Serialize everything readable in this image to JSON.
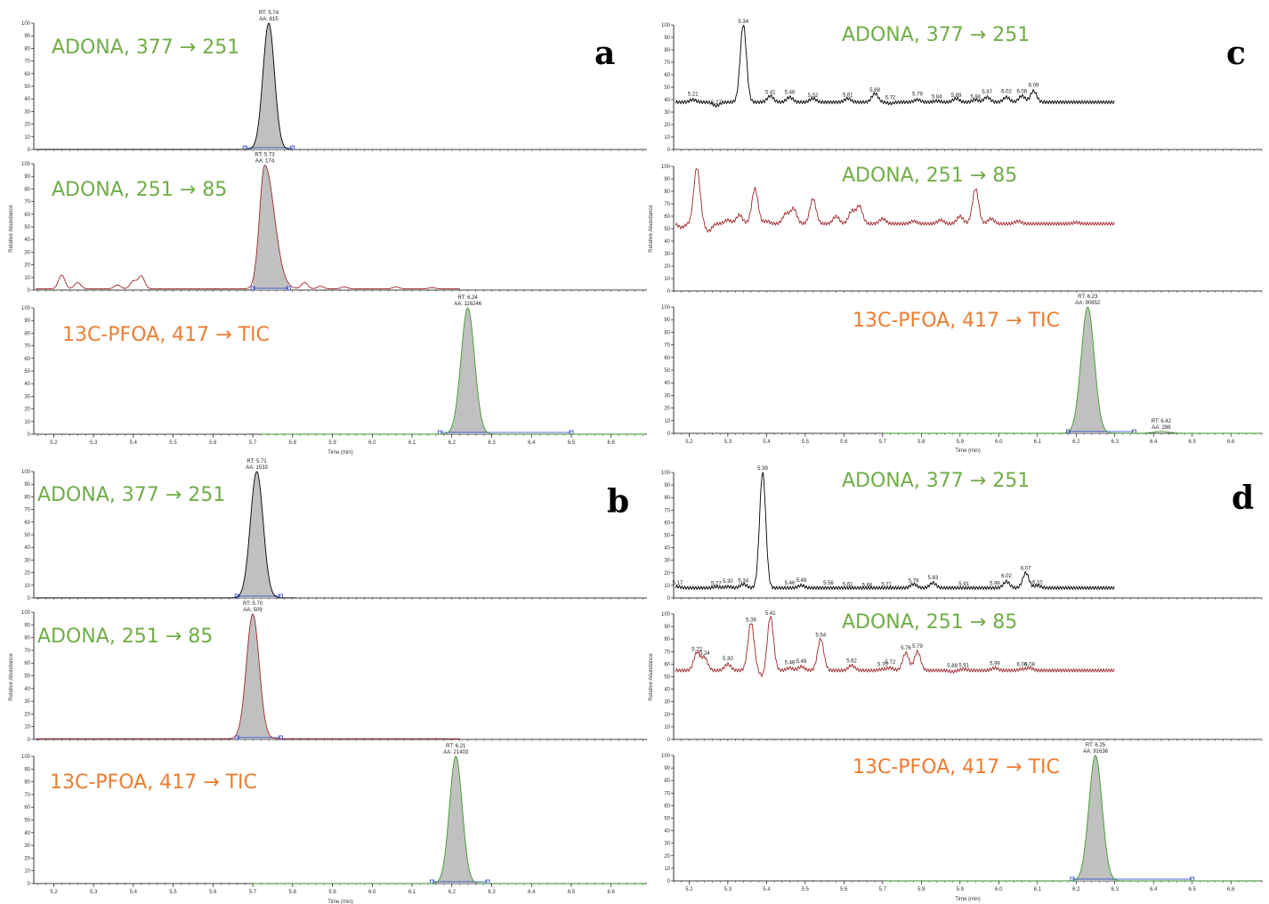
{
  "colors": {
    "green_text": "#70ad47",
    "orange_text": "#ed7d31",
    "black_trace": "#000000",
    "red_trace": "#a0282d",
    "green_trace": "#3c9a2c",
    "peak_fill": "#c0c0c0",
    "baseline_marker": "#1f3fcf"
  },
  "common": {
    "y_axis_label": "Relative Abundance",
    "x_axis_label": "Time (min)"
  },
  "chart_data": [
    {
      "type": "line",
      "panel": "a",
      "x_ticks": [
        5.2,
        5.3,
        5.4,
        5.5,
        5.6,
        5.7,
        5.8,
        5.9,
        6.0,
        6.1,
        6.2,
        6.3,
        6.4,
        6.5,
        6.6
      ],
      "xlim": [
        5.15,
        6.69
      ],
      "subplots": [
        {
          "annotation": "ADONA, 377 → 251",
          "annotation_color": "green",
          "color": "black",
          "ylim": [
            0,
            100
          ],
          "y_ticks": [
            0,
            10,
            20,
            30,
            40,
            50,
            60,
            70,
            80,
            90,
            100
          ],
          "trace_end": 5.8,
          "baseline": 0,
          "peaks": [
            {
              "rt": 5.74,
              "sigma": 0.0145,
              "height": 100,
              "fill": true,
              "fill_from": 5.68,
              "fill_to": 5.8,
              "label": [
                "RT: 5.74",
                "AA: 815"
              ]
            }
          ],
          "noise": []
        },
        {
          "annotation": "ADONA, 251 → 85",
          "annotation_color": "green",
          "color": "red",
          "ylim": [
            0,
            100
          ],
          "y_ticks": [
            0,
            10,
            20,
            30,
            40,
            50,
            60,
            70,
            80,
            90,
            100
          ],
          "trace_end": 6.22,
          "baseline": 1,
          "peaks": [
            {
              "rt": 5.73,
              "sigma": 0.013,
              "height": 98,
              "tailing": 0.024,
              "fill": true,
              "fill_from": 5.7,
              "fill_to": 5.79,
              "label": [
                "RT: 5.73",
                "AA: 174"
              ]
            }
          ],
          "noise": [
            [
              5.22,
              11
            ],
            [
              5.26,
              5
            ],
            [
              5.36,
              3
            ],
            [
              5.4,
              6
            ],
            [
              5.42,
              10
            ],
            [
              5.83,
              5
            ],
            [
              5.87,
              2
            ],
            [
              5.93,
              1.5
            ],
            [
              6.06,
              1.5
            ],
            [
              6.15,
              1
            ]
          ]
        },
        {
          "annotation": "13C-PFOA, 417 → TIC",
          "annotation_color": "orange",
          "color": "green",
          "ylim": [
            0,
            100
          ],
          "y_ticks": [
            0,
            10,
            20,
            30,
            40,
            50,
            60,
            70,
            80,
            90,
            100
          ],
          "trace_start": 5.72,
          "baseline": 0,
          "peaks": [
            {
              "rt": 6.24,
              "sigma": 0.017,
              "height": 100,
              "fill": true,
              "fill_from": 6.17,
              "fill_to": 6.5,
              "label": [
                "RT: 6.24",
                "AA: 116246"
              ]
            }
          ],
          "noise": []
        }
      ]
    },
    {
      "type": "line",
      "panel": "b",
      "x_ticks": [
        5.2,
        5.3,
        5.4,
        5.5,
        5.6,
        5.7,
        5.8,
        5.9,
        6.0,
        6.1,
        6.2,
        6.3,
        6.4,
        6.5,
        6.6
      ],
      "xlim": [
        5.15,
        6.69
      ],
      "subplots": [
        {
          "annotation": "ADONA, 377 → 251",
          "annotation_color": "green",
          "color": "black",
          "ylim": [
            0,
            100
          ],
          "y_ticks": [
            0,
            10,
            20,
            30,
            40,
            50,
            60,
            70,
            80,
            90,
            100
          ],
          "trace_end": 5.81,
          "baseline": 0,
          "peaks": [
            {
              "rt": 5.71,
              "sigma": 0.016,
              "height": 100,
              "fill": true,
              "fill_from": 5.66,
              "fill_to": 5.77,
              "label": [
                "RT: 5.71",
                "AA: 1533"
              ]
            }
          ],
          "noise": []
        },
        {
          "annotation": "ADONA, 251 → 85",
          "annotation_color": "green",
          "color": "red",
          "ylim": [
            0,
            100
          ],
          "y_ticks": [
            0,
            10,
            20,
            30,
            40,
            50,
            60,
            70,
            80,
            90,
            100
          ],
          "trace_end": 6.22,
          "baseline": 0.5,
          "peaks": [
            {
              "rt": 5.7,
              "sigma": 0.016,
              "height": 98,
              "fill": true,
              "fill_from": 5.66,
              "fill_to": 5.77,
              "label": [
                "RT: 5.70",
                "AA: 509"
              ]
            }
          ],
          "noise": []
        },
        {
          "annotation": "13C-PFOA, 417 → TIC",
          "annotation_color": "orange",
          "color": "green",
          "ylim": [
            0,
            100
          ],
          "y_ticks": [
            0,
            10,
            20,
            30,
            40,
            50,
            60,
            70,
            80,
            90,
            100
          ],
          "trace_start": 5.7,
          "baseline": 0,
          "peaks": [
            {
              "rt": 6.21,
              "sigma": 0.016,
              "height": 100,
              "fill": true,
              "fill_from": 6.15,
              "fill_to": 6.29,
              "label": [
                "RT: 6.21",
                "AA: 21403"
              ]
            }
          ],
          "noise": []
        }
      ]
    },
    {
      "type": "line",
      "panel": "c",
      "x_ticks": [
        5.2,
        5.3,
        5.4,
        5.5,
        5.6,
        5.7,
        5.8,
        5.9,
        6.0,
        6.1,
        6.2,
        6.3,
        6.4,
        6.5,
        6.6
      ],
      "xlim": [
        5.16,
        6.68
      ],
      "subplots": [
        {
          "annotation": "ADONA, 377 → 251",
          "annotation_color": "green",
          "color": "black",
          "ylim": [
            0,
            100
          ],
          "y_ticks": [
            0,
            10,
            20,
            30,
            40,
            50,
            60,
            70,
            80,
            90,
            100
          ],
          "trace_end": 6.3,
          "baseline": 38,
          "peaks": [
            {
              "rt": 5.34,
              "sigma": 0.008,
              "height": 62,
              "fill": false,
              "label": [
                "5.34"
              ]
            }
          ],
          "noise": [
            [
              5.21,
              2,
              "5.21"
            ],
            [
              5.27,
              -3,
              "5.27"
            ],
            [
              5.41,
              5,
              "5.41"
            ],
            [
              5.46,
              4,
              "5.46"
            ],
            [
              5.52,
              3,
              "5.52"
            ],
            [
              5.61,
              3,
              "5.61"
            ],
            [
              5.68,
              7,
              "5.68"
            ],
            [
              5.72,
              -1,
              "5.72"
            ],
            [
              5.79,
              2,
              "5.79"
            ],
            [
              5.84,
              1,
              "5.84"
            ],
            [
              5.89,
              3,
              "5.89"
            ],
            [
              5.94,
              2,
              "5.94"
            ],
            [
              5.97,
              4,
              "5.97"
            ],
            [
              6.02,
              4,
              "6.02"
            ],
            [
              6.06,
              5,
              "6.06"
            ],
            [
              6.09,
              9,
              "6.09"
            ]
          ]
        },
        {
          "annotation": "ADONA, 251 → 85",
          "annotation_color": "green",
          "color": "red",
          "ylim": [
            0,
            100
          ],
          "y_ticks": [
            0,
            10,
            20,
            30,
            40,
            50,
            60,
            70,
            80,
            90,
            100
          ],
          "trace_end": 6.3,
          "baseline": 54,
          "peaks": [],
          "noise": [
            [
              5.18,
              -3
            ],
            [
              5.22,
              45
            ],
            [
              5.25,
              -6
            ],
            [
              5.3,
              3
            ],
            [
              5.33,
              7
            ],
            [
              5.37,
              28
            ],
            [
              5.4,
              2
            ],
            [
              5.45,
              8
            ],
            [
              5.47,
              12
            ],
            [
              5.52,
              20
            ],
            [
              5.58,
              6
            ],
            [
              5.62,
              10
            ],
            [
              5.64,
              14
            ],
            [
              5.7,
              4
            ],
            [
              5.78,
              2
            ],
            [
              5.85,
              3
            ],
            [
              5.9,
              6
            ],
            [
              5.94,
              28
            ],
            [
              5.98,
              4
            ],
            [
              6.05,
              2
            ],
            [
              6.2,
              1
            ]
          ]
        },
        {
          "annotation": "13C-PFOA, 417 → TIC",
          "annotation_color": "orange",
          "color": "green",
          "ylim": [
            0,
            100
          ],
          "y_ticks": [
            0,
            10,
            20,
            30,
            40,
            50,
            60,
            70,
            80,
            90,
            100
          ],
          "trace_start": 5.7,
          "baseline": 0,
          "peaks": [
            {
              "rt": 6.23,
              "sigma": 0.017,
              "height": 100,
              "fill": true,
              "fill_from": 6.18,
              "fill_to": 6.35,
              "label": [
                "RT: 6.23",
                "AA: 90852"
              ]
            },
            {
              "rt": 6.42,
              "sigma": 0.02,
              "height": 1.5,
              "fill": false,
              "label": [
                "RT: 6.42",
                "AA: 286"
              ]
            }
          ],
          "noise": []
        }
      ]
    },
    {
      "type": "line",
      "panel": "d",
      "x_ticks": [
        5.2,
        5.3,
        5.4,
        5.5,
        5.6,
        5.7,
        5.8,
        5.9,
        6.0,
        6.1,
        6.2,
        6.3,
        6.4,
        6.5,
        6.6
      ],
      "xlim": [
        5.16,
        6.68
      ],
      "subplots": [
        {
          "annotation": "ADONA, 377 → 251",
          "annotation_color": "green",
          "color": "black",
          "ylim": [
            0,
            100
          ],
          "y_ticks": [
            0,
            10,
            20,
            30,
            40,
            50,
            60,
            70,
            80,
            90,
            100
          ],
          "trace_end": 6.3,
          "baseline": 8,
          "peaks": [
            {
              "rt": 5.39,
              "sigma": 0.008,
              "height": 92,
              "fill": false,
              "label": [
                "5.39"
              ]
            }
          ],
          "noise": [
            [
              5.17,
              1,
              "5.17"
            ],
            [
              5.27,
              1,
              "5.27"
            ],
            [
              5.3,
              1,
              "5.30"
            ],
            [
              5.34,
              3,
              "5.34"
            ],
            [
              5.46,
              0,
              "5.46"
            ],
            [
              5.49,
              2,
              "5.49"
            ],
            [
              5.56,
              0,
              "5.56"
            ],
            [
              5.61,
              0,
              "5.61"
            ],
            [
              5.66,
              0,
              "5.66"
            ],
            [
              5.71,
              0,
              "5.71"
            ],
            [
              5.78,
              3,
              "5.78"
            ],
            [
              5.83,
              4,
              "5.83"
            ],
            [
              5.91,
              0,
              "5.91"
            ],
            [
              5.99,
              0,
              "5.99"
            ],
            [
              6.02,
              5,
              "6.02"
            ],
            [
              6.07,
              12,
              "6.07"
            ],
            [
              6.1,
              2,
              "6.10"
            ]
          ]
        },
        {
          "annotation": "ADONA, 251 → 85",
          "annotation_color": "green",
          "color": "red",
          "ylim": [
            0,
            100
          ],
          "y_ticks": [
            0,
            10,
            20,
            30,
            40,
            50,
            60,
            70,
            80,
            90,
            100
          ],
          "trace_end": 6.3,
          "baseline": 55,
          "peaks": [],
          "noise": [
            [
              5.22,
              14,
              "5.22"
            ],
            [
              5.24,
              10,
              "5.24"
            ],
            [
              5.3,
              5,
              "5.30"
            ],
            [
              5.36,
              38,
              "5.36"
            ],
            [
              5.39,
              -5
            ],
            [
              5.41,
              43,
              "5.41"
            ],
            [
              5.46,
              2,
              "5.46"
            ],
            [
              5.49,
              3,
              "5.49"
            ],
            [
              5.54,
              25,
              "5.54"
            ],
            [
              5.62,
              4,
              "5.62"
            ],
            [
              5.7,
              1,
              "5.70"
            ],
            [
              5.72,
              2,
              "5.72"
            ],
            [
              5.76,
              14,
              "5.76"
            ],
            [
              5.79,
              15,
              "5.79"
            ],
            [
              5.88,
              -1,
              "5.88"
            ],
            [
              5.91,
              1,
              "5.91"
            ],
            [
              5.99,
              2,
              "5.99"
            ],
            [
              6.06,
              1,
              "6.06"
            ],
            [
              6.08,
              2,
              "6.08"
            ]
          ]
        },
        {
          "annotation": "13C-PFOA, 417 → TIC",
          "annotation_color": "orange",
          "color": "green",
          "ylim": [
            0,
            100
          ],
          "y_ticks": [
            0,
            10,
            20,
            30,
            40,
            50,
            60,
            70,
            80,
            90,
            100
          ],
          "trace_start": 5.7,
          "baseline": 0,
          "peaks": [
            {
              "rt": 6.25,
              "sigma": 0.017,
              "height": 100,
              "fill": true,
              "fill_from": 6.19,
              "fill_to": 6.5,
              "label": [
                "RT: 6.25",
                "AA: 91636"
              ]
            }
          ],
          "noise": []
        }
      ]
    }
  ]
}
